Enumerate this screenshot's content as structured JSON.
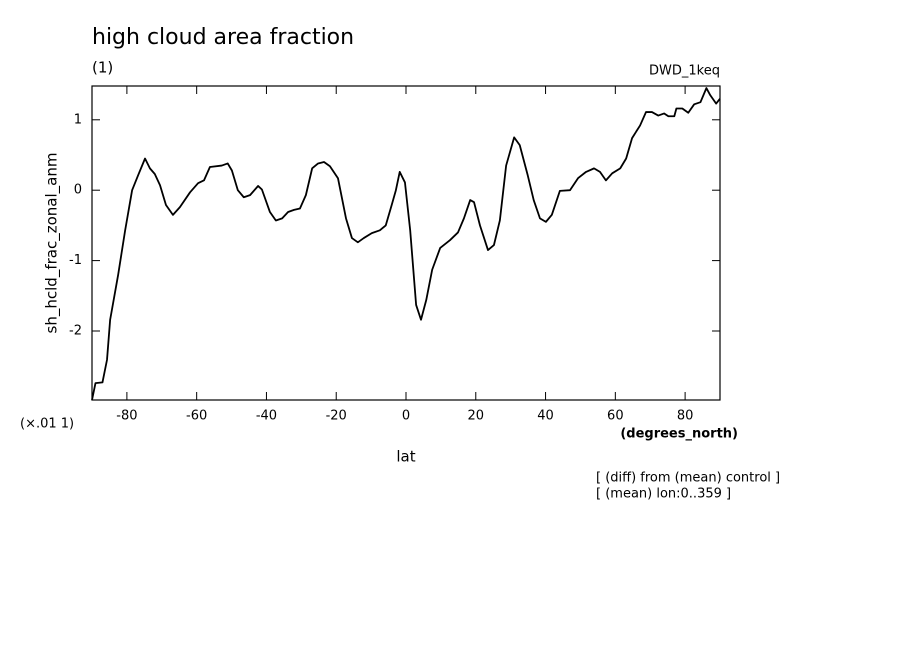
{
  "chart_data": {
    "type": "line",
    "title": "high cloud area fraction",
    "subtitle": "(1)",
    "source_label": "DWD_1keq",
    "ylabel": "sh_hcld_frac_zonal_anm",
    "yscale_label": "(×.01 1)",
    "xunit_label": "(degrees_north)",
    "xlabel": "lat",
    "notes": [
      "[ (diff) from (mean) control ]",
      "[ (mean) lon:0..359 ]"
    ],
    "xlim": [
      -90,
      90
    ],
    "ylim": [
      -2.98,
      1.48
    ],
    "xticks": [
      -80,
      -60,
      -40,
      -20,
      0,
      20,
      40,
      60,
      80
    ],
    "yticks": [
      -2,
      -1,
      0,
      1
    ],
    "color": "#000000",
    "grid": false,
    "x": [
      -90,
      -89,
      -87,
      -85.7,
      -84.8,
      -82.5,
      -80.5,
      -78.5,
      -76.8,
      -74.8,
      -73.4,
      -72,
      -70.5,
      -68.8,
      -66.8,
      -64.8,
      -61.9,
      -59.6,
      -57.9,
      -56.2,
      -52.8,
      -51.1,
      -49.9,
      -48.2,
      -46.5,
      -44.7,
      -42.4,
      -41.3,
      -39,
      -37.3,
      -35.5,
      -33.8,
      -32.1,
      -30.4,
      -28.7,
      -26.9,
      -25.2,
      -23.5,
      -21.8,
      -19.5,
      -17.2,
      -15.5,
      -13.8,
      -12.1,
      -9.8,
      -7.5,
      -5.8,
      -4.1,
      -2.9,
      -1.8,
      -0.3,
      1.2,
      2.9,
      4.3,
      5.8,
      7.5,
      9.8,
      12.6,
      14.9,
      16.6,
      18.4,
      19.5,
      21.2,
      23.5,
      25.2,
      26.9,
      28.7,
      31,
      32.6,
      34.9,
      36.6,
      38.4,
      40.1,
      41.8,
      44.1,
      47,
      49.3,
      51.6,
      53.9,
      55.6,
      57.3,
      59.1,
      61.4,
      63.1,
      64.8,
      67.1,
      68.8,
      70.5,
      72.3,
      74,
      75.2,
      76.9,
      77.5,
      79.2,
      80.9,
      82.6,
      84.4,
      86.1,
      87.2,
      88.9,
      90
    ],
    "values": [
      -2.98,
      -2.74,
      -2.73,
      -2.41,
      -1.84,
      -1.2,
      -0.57,
      0,
      0.21,
      0.45,
      0.31,
      0.23,
      0.07,
      -0.21,
      -0.35,
      -0.24,
      -0.03,
      0.1,
      0.14,
      0.33,
      0.35,
      0.38,
      0.28,
      0,
      -0.1,
      -0.07,
      0.06,
      0.01,
      -0.31,
      -0.43,
      -0.4,
      -0.31,
      -0.28,
      -0.26,
      -0.07,
      0.31,
      0.38,
      0.4,
      0.34,
      0.17,
      -0.4,
      -0.68,
      -0.74,
      -0.68,
      -0.61,
      -0.57,
      -0.5,
      -0.21,
      0,
      0.26,
      0.11,
      -0.57,
      -1.63,
      -1.84,
      -1.56,
      -1.13,
      -0.82,
      -0.71,
      -0.6,
      -0.4,
      -0.14,
      -0.17,
      -0.5,
      -0.85,
      -0.78,
      -0.43,
      0.35,
      0.75,
      0.64,
      0.21,
      -0.14,
      -0.4,
      -0.45,
      -0.35,
      -0.01,
      0,
      0.17,
      0.26,
      0.31,
      0.26,
      0.14,
      0.24,
      0.31,
      0.45,
      0.74,
      0.92,
      1.11,
      1.11,
      1.06,
      1.09,
      1.05,
      1.05,
      1.16,
      1.16,
      1.1,
      1.22,
      1.25,
      1.45,
      1.35,
      1.23,
      1.3
    ]
  }
}
